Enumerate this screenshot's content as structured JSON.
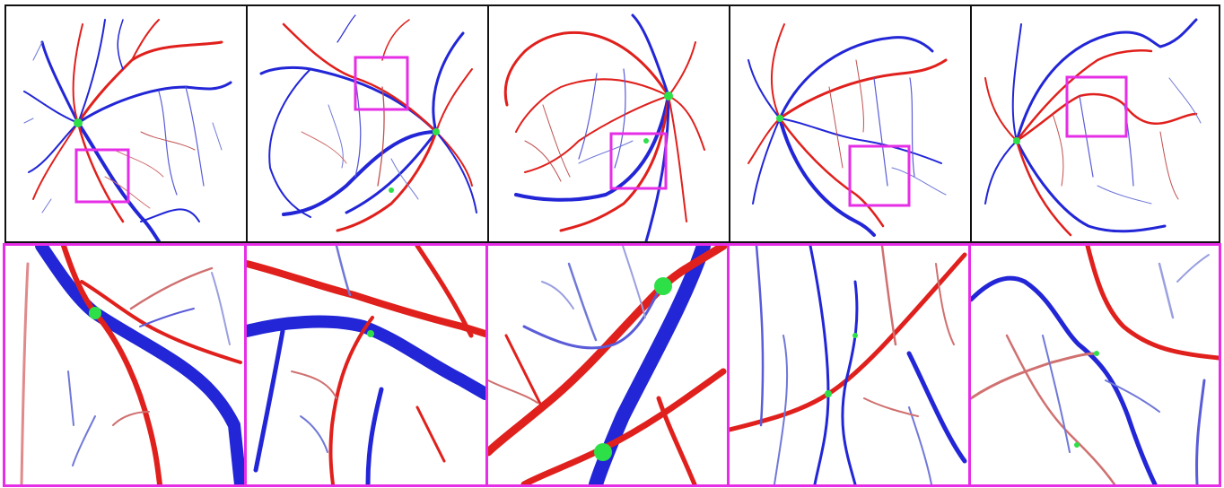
{
  "figure": {
    "colors": {
      "artery": "#e0201c",
      "vein": "#2226d6",
      "crossing": "#2ee048",
      "zoom_box": "#e62ee6",
      "panel_border": "#111111"
    },
    "panels": [
      {
        "id": "a",
        "view": "full-fundus",
        "zoom": "crop"
      },
      {
        "id": "b",
        "view": "full-fundus",
        "zoom": "crop"
      },
      {
        "id": "c",
        "view": "full-fundus",
        "zoom": "crop"
      },
      {
        "id": "d",
        "view": "full-fundus",
        "zoom": "crop"
      },
      {
        "id": "e",
        "view": "full-fundus",
        "zoom": "crop"
      }
    ]
  }
}
